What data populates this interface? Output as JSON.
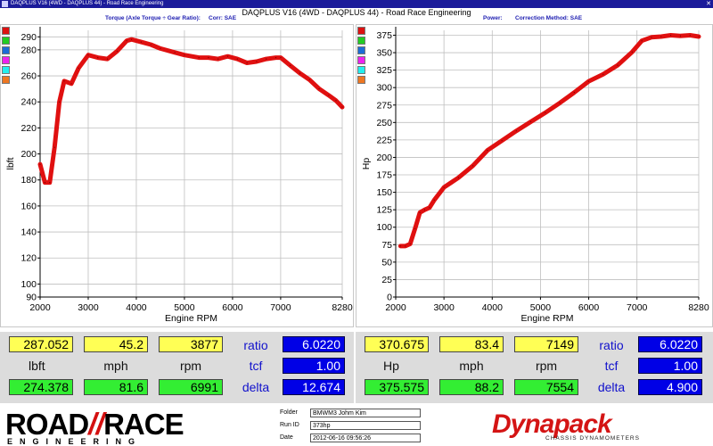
{
  "window": {
    "title": "DAQPLUS V16 (4WD - DAQPLUS 44) - Road Race Engineering",
    "close_glyph": "✕"
  },
  "header": {
    "title": "DAQPLUS V16 (4WD - DAQPLUS 44) - Road Race Engineering",
    "left_label": "Torque (Axle Torque ÷ Gear Ratio):",
    "left_corr": "Corr: SAE",
    "right_label": "Power:",
    "right_corr": "Correction Method: SAE"
  },
  "legend_swatches": [
    "#dd1111",
    "#22cc22",
    "#1c6cd6",
    "#ee22ee",
    "#22eeee",
    "#ee7722"
  ],
  "chart_data": [
    {
      "type": "line",
      "title": "",
      "xlabel": "Engine RPM",
      "ylabel": "lbft",
      "xlim": [
        2000,
        8280
      ],
      "ylim": [
        90,
        295
      ],
      "xticks": [
        2000,
        3000,
        4000,
        5000,
        6000,
        7000,
        8280
      ],
      "yticks": [
        90,
        100,
        120,
        140,
        160,
        180,
        200,
        220,
        240,
        260,
        280,
        290
      ],
      "grid": true,
      "series": [
        {
          "color": "#e01010",
          "x": [
            2000,
            2100,
            2200,
            2300,
            2400,
            2500,
            2650,
            2800,
            3000,
            3200,
            3400,
            3600,
            3800,
            3900,
            4100,
            4300,
            4500,
            4800,
            5000,
            5300,
            5500,
            5700,
            5900,
            6100,
            6300,
            6500,
            6700,
            6900,
            7000,
            7200,
            7400,
            7600,
            7800,
            8000,
            8150,
            8280
          ],
          "values": [
            192,
            178,
            178,
            205,
            240,
            256,
            254,
            266,
            276,
            274,
            273,
            279,
            287,
            288,
            286,
            284,
            281,
            278,
            276,
            274,
            274,
            273,
            275,
            273,
            270,
            271,
            273,
            274,
            274,
            268,
            262,
            257,
            250,
            245,
            241,
            236
          ]
        }
      ]
    },
    {
      "type": "line",
      "title": "",
      "xlabel": "Engine RPM",
      "ylabel": "Hp",
      "xlim": [
        2000,
        8280
      ],
      "ylim": [
        0,
        382
      ],
      "xticks": [
        2000,
        3000,
        4000,
        5000,
        6000,
        7000,
        8280
      ],
      "yticks": [
        0,
        25,
        50,
        75,
        100,
        125,
        150,
        175,
        200,
        225,
        250,
        275,
        300,
        325,
        350,
        375
      ],
      "grid": true,
      "series": [
        {
          "color": "#e01010",
          "x": [
            2100,
            2200,
            2300,
            2400,
            2500,
            2600,
            2700,
            2800,
            3000,
            3300,
            3600,
            3900,
            4200,
            4500,
            4800,
            5100,
            5400,
            5700,
            6000,
            6300,
            6600,
            6900,
            7100,
            7300,
            7500,
            7700,
            7900,
            8100,
            8280
          ],
          "values": [
            73,
            73,
            76,
            98,
            121,
            125,
            128,
            139,
            157,
            171,
            188,
            210,
            224,
            238,
            251,
            264,
            278,
            293,
            309,
            319,
            332,
            351,
            367,
            372,
            373,
            375,
            374,
            375,
            373
          ]
        }
      ]
    }
  ],
  "readouts": {
    "left": {
      "current": {
        "torque": "287.052",
        "speed": "45.2",
        "rpm": "3877"
      },
      "labels": {
        "torque": "lbft",
        "speed": "mph",
        "rpm": "rpm"
      },
      "reference": {
        "torque": "274.378",
        "speed": "81.6",
        "rpm": "6991"
      },
      "params": [
        {
          "label": "ratio",
          "value": "6.0220"
        },
        {
          "label": "tcf",
          "value": "1.00"
        },
        {
          "label": "delta",
          "value": "12.674"
        }
      ]
    },
    "right": {
      "current": {
        "power": "370.675",
        "speed": "83.4",
        "rpm": "7149"
      },
      "labels": {
        "power": "Hp",
        "speed": "mph",
        "rpm": "rpm"
      },
      "reference": {
        "power": "375.575",
        "speed": "88.2",
        "rpm": "7554"
      },
      "params": [
        {
          "label": "ratio",
          "value": "6.0220"
        },
        {
          "label": "tcf",
          "value": "1.00"
        },
        {
          "label": "delta",
          "value": "4.900"
        }
      ]
    }
  },
  "footer": {
    "brand_left": "ROAD",
    "brand_slash": "//",
    "brand_right": "RACE",
    "brand_sub": "ENGINEERING",
    "info": [
      {
        "label": "Folder",
        "value": "BMWM3 Johm Kim"
      },
      {
        "label": "Run ID",
        "value": "373hp"
      },
      {
        "label": "Date",
        "value": "2012-06-16 09:56:26"
      }
    ],
    "dyna_logo": "Dynapack",
    "dyna_sub": "CHASSIS DYNAMOMETERS"
  }
}
